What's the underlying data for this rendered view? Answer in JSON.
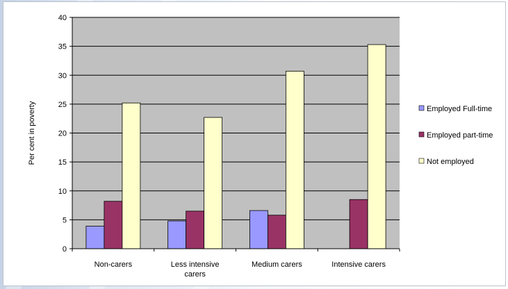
{
  "chart_data": {
    "type": "bar",
    "title": "",
    "xlabel": "",
    "ylabel": "Per cent in poverty",
    "ylim": [
      0,
      40
    ],
    "yticks": [
      0,
      5,
      10,
      15,
      20,
      25,
      30,
      35,
      40
    ],
    "grid": true,
    "legend_position": "right",
    "categories": [
      [
        "Non-carers"
      ],
      [
        "Less intensive",
        "carers"
      ],
      [
        "Medium carers"
      ],
      [
        "Intensive carers"
      ]
    ],
    "series": [
      {
        "name": "Employed Full-time",
        "color": "#9999ff",
        "values": [
          3.9,
          4.8,
          6.6,
          null
        ]
      },
      {
        "name": "Employed part-time",
        "color": "#993366",
        "values": [
          8.2,
          6.5,
          5.8,
          8.5
        ]
      },
      {
        "name": "Not employed",
        "color": "#ffffcc",
        "values": [
          25.2,
          22.7,
          30.7,
          35.3
        ]
      }
    ],
    "plot_background": "#c0c0c0"
  }
}
